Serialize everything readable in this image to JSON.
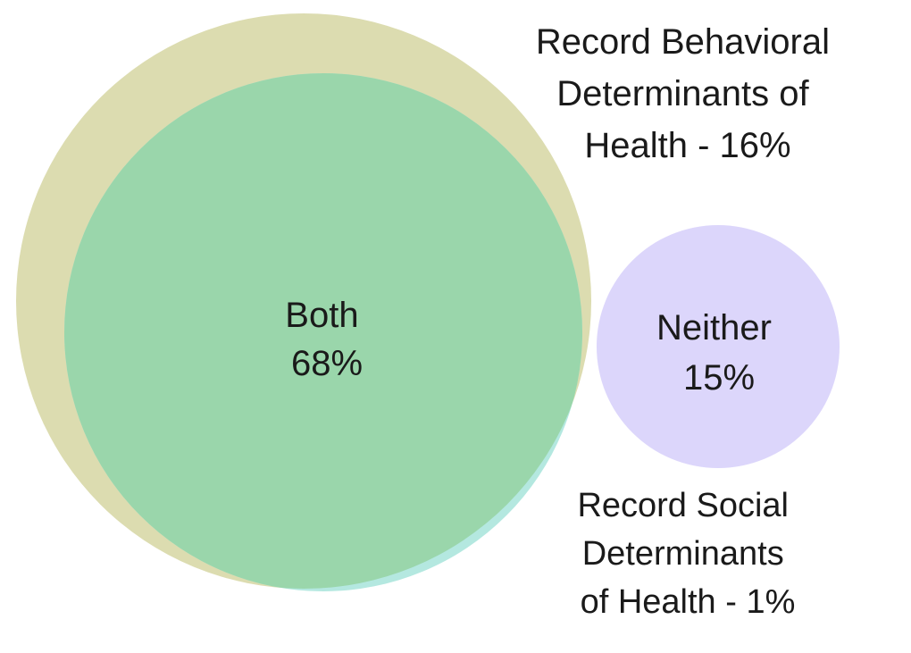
{
  "chart_data": {
    "type": "venn",
    "colors": {
      "behavioral": "#dcdcb0",
      "social": "#b4e8e0",
      "overlap": "#9ad6ab",
      "neither": "#dcd6fb"
    },
    "sets": [
      {
        "key": "behavioral",
        "label_lines": [
          "Record Behavioral",
          "Determinants of",
          "Health - 16%"
        ],
        "value": 16
      },
      {
        "key": "social",
        "label_lines": [
          "Record Social",
          "Determinants",
          "of Health - 1%"
        ],
        "value": 1
      }
    ],
    "overlap": {
      "label_lines": [
        "Both",
        "68%"
      ],
      "value": 68
    },
    "neither": {
      "label_lines": [
        "Neither",
        "15%"
      ],
      "value": 15
    }
  }
}
